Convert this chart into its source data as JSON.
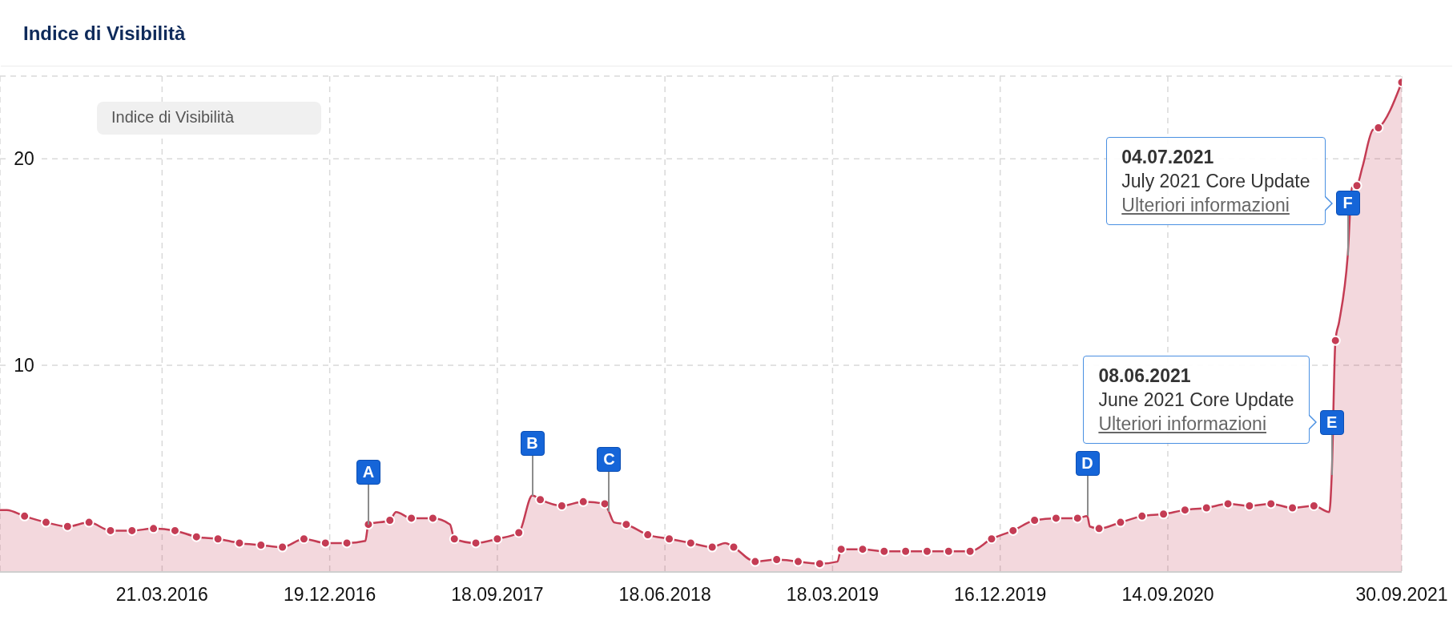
{
  "chart_data": {
    "type": "area",
    "title": "Indice di Visibilità",
    "series": [
      {
        "color": "#c43c54",
        "marker": "none",
        "x": [
          "2015-07-01",
          "2015-07-12",
          "2015-08-10",
          "2015-09-14",
          "2015-10-19",
          "2015-11-23",
          "2015-12-28",
          "2016-02-01",
          "2016-03-07",
          "2016-04-11",
          "2016-05-16",
          "2016-06-20",
          "2016-07-25",
          "2016-08-29",
          "2016-10-03",
          "2016-11-07",
          "2016-12-12",
          "2017-01-16",
          "2017-02-15",
          "2017-02-20",
          "2017-03-27",
          "2017-04-06",
          "2017-05-01",
          "2017-06-05",
          "2017-07-03",
          "2017-07-10",
          "2017-08-14",
          "2017-09-18",
          "2017-10-23",
          "2017-11-14",
          "2017-11-27",
          "2018-01-01",
          "2018-02-05",
          "2018-03-12",
          "2018-03-19",
          "2018-03-27",
          "2018-04-16",
          "2018-05-21",
          "2018-06-25",
          "2018-07-30",
          "2018-09-03",
          "2018-09-24",
          "2018-10-08",
          "2018-11-12",
          "2018-12-17",
          "2019-01-21",
          "2019-02-25",
          "2019-03-26",
          "2019-04-01",
          "2019-05-06",
          "2019-06-10",
          "2019-07-15",
          "2019-08-19",
          "2019-09-23",
          "2019-10-28",
          "2019-12-02",
          "2020-01-06",
          "2020-02-10",
          "2020-03-16",
          "2020-04-20",
          "2020-05-06",
          "2020-05-10",
          "2020-05-25",
          "2020-06-29",
          "2020-08-03",
          "2020-09-07",
          "2020-10-12",
          "2020-11-16",
          "2020-12-21",
          "2021-01-25",
          "2021-03-01",
          "2021-04-05",
          "2021-05-10",
          "2021-06-04",
          "2021-06-08",
          "2021-06-14",
          "2021-06-20",
          "2021-07-04",
          "2021-07-11",
          "2021-07-19",
          "2021-07-28",
          "2021-08-14",
          "2021-08-23",
          "2021-09-30"
        ],
        "values": [
          3.0,
          3.0,
          2.7,
          2.4,
          2.2,
          2.4,
          2.0,
          2.0,
          2.1,
          2.0,
          1.7,
          1.6,
          1.4,
          1.3,
          1.2,
          1.6,
          1.4,
          1.4,
          1.5,
          2.3,
          2.5,
          2.9,
          2.6,
          2.6,
          2.3,
          1.6,
          1.4,
          1.6,
          1.9,
          3.7,
          3.5,
          3.2,
          3.4,
          3.3,
          2.9,
          2.4,
          2.3,
          1.8,
          1.6,
          1.4,
          1.2,
          1.4,
          1.2,
          0.5,
          0.6,
          0.5,
          0.4,
          0.5,
          1.1,
          1.1,
          1.0,
          1.0,
          1.0,
          1.0,
          1.0,
          1.6,
          2.0,
          2.5,
          2.6,
          2.6,
          2.7,
          2.2,
          2.1,
          2.4,
          2.7,
          2.8,
          3.0,
          3.1,
          3.3,
          3.2,
          3.3,
          3.1,
          3.2,
          2.9,
          4.7,
          11.2,
          12.1,
          15.3,
          18.6,
          18.7,
          19.6,
          21.4,
          21.5,
          23.7
        ]
      },
      {
        "type": "scatter",
        "color": "#c43c54",
        "marker": "circle",
        "x": [
          "2015-08-10",
          "2015-09-14",
          "2015-10-19",
          "2015-11-23",
          "2015-12-28",
          "2016-02-01",
          "2016-03-07",
          "2016-04-11",
          "2016-05-16",
          "2016-06-20",
          "2016-07-25",
          "2016-08-29",
          "2016-10-03",
          "2016-11-07",
          "2016-12-12",
          "2017-01-16",
          "2017-02-20",
          "2017-03-27",
          "2017-05-01",
          "2017-06-05",
          "2017-07-10",
          "2017-08-14",
          "2017-09-18",
          "2017-10-23",
          "2017-11-27",
          "2018-01-01",
          "2018-02-05",
          "2018-03-12",
          "2018-04-16",
          "2018-05-21",
          "2018-06-25",
          "2018-07-30",
          "2018-09-03",
          "2018-10-08",
          "2018-11-12",
          "2018-12-17",
          "2019-01-21",
          "2019-02-25",
          "2019-04-01",
          "2019-05-06",
          "2019-06-10",
          "2019-07-15",
          "2019-08-19",
          "2019-09-23",
          "2019-10-28",
          "2019-12-02",
          "2020-01-06",
          "2020-02-10",
          "2020-03-16",
          "2020-04-20",
          "2020-05-25",
          "2020-06-29",
          "2020-08-03",
          "2020-09-07",
          "2020-10-12",
          "2020-11-16",
          "2020-12-21",
          "2021-01-25",
          "2021-03-01",
          "2021-04-05",
          "2021-05-10",
          "2021-06-14",
          "2021-07-19",
          "2021-08-23",
          "2021-09-30"
        ],
        "values": [
          2.7,
          2.4,
          2.2,
          2.4,
          2.0,
          2.0,
          2.1,
          2.0,
          1.7,
          1.6,
          1.4,
          1.3,
          1.2,
          1.6,
          1.4,
          1.4,
          2.3,
          2.5,
          2.6,
          2.6,
          1.6,
          1.4,
          1.6,
          1.9,
          3.5,
          3.2,
          3.4,
          3.3,
          2.3,
          1.8,
          1.6,
          1.4,
          1.2,
          1.2,
          0.5,
          0.6,
          0.5,
          0.4,
          1.1,
          1.1,
          1.0,
          1.0,
          1.0,
          1.0,
          1.0,
          1.6,
          2.0,
          2.5,
          2.6,
          2.6,
          2.1,
          2.4,
          2.7,
          2.8,
          3.0,
          3.1,
          3.3,
          3.2,
          3.3,
          3.1,
          3.2,
          11.2,
          18.7,
          21.5,
          23.7
        ]
      }
    ],
    "xlim": [
      "2015-07-01",
      "2021-09-30"
    ],
    "xticks": [
      {
        "value": "2016-03-21",
        "label": "21.03.2016"
      },
      {
        "value": "2016-12-19",
        "label": "19.12.2016"
      },
      {
        "value": "2017-09-18",
        "label": "18.09.2017"
      },
      {
        "value": "2018-06-18",
        "label": "18.06.2018"
      },
      {
        "value": "2019-03-18",
        "label": "18.03.2019"
      },
      {
        "value": "2019-12-16",
        "label": "16.12.2019"
      },
      {
        "value": "2020-09-14",
        "label": "14.09.2020"
      },
      {
        "value": "2021-09-30",
        "label": "30.09.2021"
      }
    ],
    "ylim": [
      0,
      24
    ],
    "yticks": [
      10,
      20
    ],
    "grid": true,
    "annotations": [
      "Indice di Visibilità",
      {
        "text": "A",
        "x": "2017-02-20",
        "y": 2.3
      },
      {
        "text": "B",
        "x": "2017-11-14",
        "y": 3.7
      },
      {
        "text": "C",
        "x": "2018-03-19",
        "y": 2.9
      },
      {
        "text": "D",
        "x": "2020-05-06",
        "y": 2.7
      },
      {
        "text": "E",
        "x": "2021-06-08",
        "y": 4.7
      },
      {
        "text": "F",
        "x": "2021-07-04",
        "y": 15.3
      },
      {
        "text": "08.06.2021\nJune 2021 Core Update\nUlteriori informazioni",
        "x": "2021-06-08",
        "y": 4.7
      },
      {
        "text": "04.07.2021\nJuly 2021 Core Update\nUlteriori informazioni",
        "x": "2021-07-04",
        "y": 15.3
      }
    ]
  }
}
